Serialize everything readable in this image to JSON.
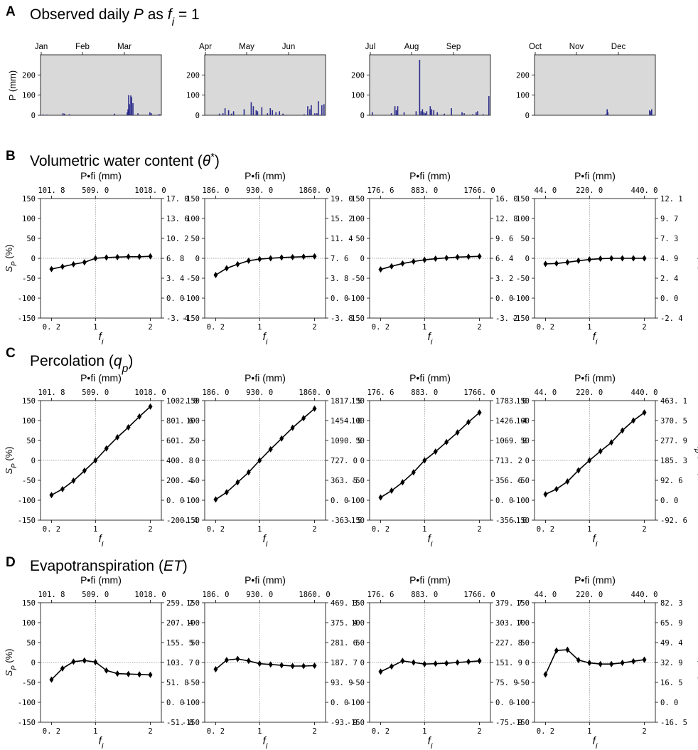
{
  "panels": {
    "A": {
      "label": "A",
      "title": "Observed daily P as f_i = 1"
    },
    "B": {
      "label": "B",
      "title": "Volumetric water content (θ*)"
    },
    "C": {
      "label": "C",
      "title": "Percolation (q_p)"
    },
    "D": {
      "label": "D",
      "title": "Evapotranspiration (ET)"
    }
  },
  "common": {
    "fi_label": "f_i",
    "pfi_label": "P•f_i (mm)",
    "sp_label": "S_P (%)",
    "p_label": "P (mm)"
  },
  "chart_data": [
    {
      "id": "A-precip",
      "type": "bar",
      "title": "Observed daily P as f_i = 1",
      "ylabel": "P (mm)",
      "ylim": [
        0,
        300
      ],
      "yticks": [
        0,
        100,
        200
      ],
      "colors": {
        "bar": "#2b2b8c",
        "background": "#d9d9d9"
      },
      "subplots": [
        {
          "months": [
            "Jan",
            "Feb",
            "Mar"
          ],
          "days": [
            3,
            8,
            31,
            33,
            40,
            104,
            122,
            123,
            124,
            125,
            127,
            128,
            130,
            137,
            154,
            156,
            166,
            168
          ],
          "values": [
            4,
            3,
            10,
            8,
            5,
            8,
            15,
            30,
            100,
            55,
            98,
            90,
            60,
            10,
            15,
            10,
            4,
            5
          ]
        },
        {
          "months": [
            "Apr",
            "May",
            "Jun"
          ],
          "days": [
            20,
            25,
            28,
            33,
            37,
            40,
            55,
            65,
            68,
            72,
            74,
            80,
            88,
            92,
            95,
            100,
            105,
            110,
            140,
            145,
            148,
            150,
            155,
            158,
            160,
            165,
            168
          ],
          "values": [
            8,
            10,
            35,
            25,
            8,
            20,
            30,
            65,
            45,
            25,
            20,
            40,
            10,
            35,
            25,
            15,
            20,
            8,
            5,
            45,
            30,
            50,
            10,
            10,
            70,
            50,
            55
          ]
        },
        {
          "months": [
            "Jul",
            "Aug",
            "Sep"
          ],
          "days": [
            3,
            30,
            35,
            37,
            39,
            48,
            65,
            70,
            72,
            74,
            76,
            78,
            80,
            85,
            87,
            90,
            95,
            105,
            115,
            130,
            133,
            145,
            150,
            152,
            160,
            168
          ],
          "values": [
            15,
            10,
            45,
            25,
            45,
            15,
            20,
            275,
            20,
            30,
            15,
            10,
            20,
            45,
            30,
            25,
            15,
            8,
            35,
            15,
            10,
            5,
            15,
            20,
            5,
            95
          ]
        },
        {
          "months": [
            "Oct",
            "Nov",
            "Dec"
          ],
          "days": [
            100,
            102,
            103,
            162,
            164,
            165
          ],
          "values": [
            5,
            30,
            15,
            25,
            20,
            30
          ]
        }
      ]
    },
    {
      "id": "B-theta",
      "type": "line",
      "title": "Volumetric water content (θ*)",
      "xlabel": "f_i",
      "ylabel_left": "S_P (%)",
      "ylabel_right": "θ* (%)",
      "xlim": [
        0.0,
        2.2
      ],
      "ylim": [
        -150,
        150
      ],
      "xticks": [
        0.2,
        1,
        2
      ],
      "xtick_labels": [
        "0. 2",
        "1",
        "2"
      ],
      "yticks": [
        -150,
        -100,
        -50,
        0,
        50,
        100,
        150
      ],
      "x": [
        0.2,
        0.4,
        0.6,
        0.8,
        1.0,
        1.2,
        1.4,
        1.6,
        1.8,
        2.0
      ],
      "subplots": [
        {
          "top_tick_labels": [
            "101. 8",
            "509. 0",
            "1018. 0"
          ],
          "right_tick_labels": [
            "17. 0",
            "13. 6",
            "10. 2",
            "6. 8",
            "3. 4",
            "0. 0",
            "-3. 4"
          ],
          "values": [
            -27,
            -21,
            -15,
            -10,
            0,
            2,
            3,
            4,
            4,
            5
          ]
        },
        {
          "top_tick_labels": [
            "186. 0",
            "930. 0",
            "1860. 0"
          ],
          "right_tick_labels": [
            "19. 0",
            "15. 2",
            "11. 4",
            "7. 6",
            "3. 8",
            "0. 0",
            "-3. 8"
          ],
          "values": [
            -42,
            -25,
            -15,
            -6,
            -2,
            0,
            2,
            3,
            4,
            5
          ]
        },
        {
          "top_tick_labels": [
            "176. 6",
            "883. 0",
            "1766. 0"
          ],
          "right_tick_labels": [
            "16. 0",
            "12. 8",
            "9. 6",
            "6. 4",
            "3. 2",
            "0. 0",
            "-3. 2"
          ],
          "values": [
            -28,
            -20,
            -13,
            -8,
            -4,
            -1,
            1,
            3,
            4,
            5
          ]
        },
        {
          "top_tick_labels": [
            "44. 0",
            "220. 0",
            "440. 0"
          ],
          "right_tick_labels": [
            "12. 1",
            "9. 7",
            "7. 3",
            "4. 9",
            "2. 4",
            "0. 0",
            "-2. 4"
          ],
          "values": [
            -14,
            -13,
            -10,
            -6,
            -3,
            -1,
            0,
            0,
            0,
            0
          ]
        }
      ]
    },
    {
      "id": "C-percolation",
      "type": "line",
      "title": "Percolation (q_p)",
      "xlabel": "f_i",
      "ylabel_left": "S_P (%)",
      "ylabel_right": "q_p (mm)",
      "xlim": [
        0.0,
        2.2
      ],
      "ylim": [
        -150,
        150
      ],
      "xticks": [
        0.2,
        1,
        2
      ],
      "xtick_labels": [
        "0. 2",
        "1",
        "2"
      ],
      "yticks": [
        -150,
        -100,
        -50,
        0,
        50,
        100,
        150
      ],
      "x": [
        0.2,
        0.4,
        0.6,
        0.8,
        1.0,
        1.2,
        1.4,
        1.6,
        1.8,
        2.0
      ],
      "subplots": [
        {
          "top_tick_labels": [
            "101. 8",
            "509. 0",
            "1018. 0"
          ],
          "right_tick_labels": [
            "1002. 0",
            "801. 6",
            "601. 2",
            "400. 8",
            "200. 4",
            "0. 0",
            "-200. 4"
          ],
          "values": [
            -87,
            -72,
            -51,
            -26,
            0,
            30,
            58,
            83,
            110,
            135
          ]
        },
        {
          "top_tick_labels": [
            "186. 0",
            "930. 0",
            "1860. 0"
          ],
          "right_tick_labels": [
            "1817. 5",
            "1454. 0",
            "1090. 5",
            "727. 0",
            "363. 5",
            "0. 0",
            "-363. 5"
          ],
          "values": [
            -98,
            -80,
            -55,
            -30,
            0,
            28,
            55,
            82,
            106,
            130
          ]
        },
        {
          "top_tick_labels": [
            "176. 6",
            "883. 0",
            "1766. 0"
          ],
          "right_tick_labels": [
            "1783. 0",
            "1426. 4",
            "1069. 8",
            "713. 2",
            "356. 6",
            "0. 0",
            "-356. 6"
          ],
          "values": [
            -93,
            -76,
            -55,
            -30,
            0,
            22,
            46,
            70,
            96,
            120
          ]
        },
        {
          "top_tick_labels": [
            "44. 0",
            "220. 0",
            "440. 0"
          ],
          "right_tick_labels": [
            "463. 1",
            "370. 5",
            "277. 9",
            "185. 3",
            "92. 6",
            "0. 0",
            "-92. 6"
          ],
          "values": [
            -85,
            -72,
            -53,
            -25,
            0,
            23,
            45,
            75,
            100,
            120
          ]
        }
      ]
    },
    {
      "id": "D-et",
      "type": "line",
      "title": "Evapotranspiration (ET)",
      "xlabel": "f_i",
      "ylabel_left": "S_P (%)",
      "ylabel_right": "ET (mm)",
      "xlim": [
        0.0,
        2.2
      ],
      "ylim": [
        -150,
        150
      ],
      "xticks": [
        0.2,
        1,
        2
      ],
      "xtick_labels": [
        "0. 2",
        "1",
        "2"
      ],
      "yticks": [
        -150,
        -100,
        -50,
        0,
        50,
        100,
        150
      ],
      "x": [
        0.2,
        0.4,
        0.6,
        0.8,
        1.0,
        1.2,
        1.4,
        1.6,
        1.8,
        2.0
      ],
      "subplots": [
        {
          "top_tick_labels": [
            "101. 8",
            "509. 0",
            "1018. 0"
          ],
          "right_tick_labels": [
            "259. 2",
            "207. 4",
            "155. 5",
            "103. 7",
            "51. 8",
            "0. 0",
            "-51. 8"
          ],
          "values": [
            -43,
            -15,
            2,
            5,
            1,
            -20,
            -28,
            -29,
            -30,
            -31
          ]
        },
        {
          "top_tick_labels": [
            "186. 0",
            "930. 0",
            "1860. 0"
          ],
          "right_tick_labels": [
            "469. 3",
            "375. 4",
            "281. 6",
            "187. 7",
            "93. 9",
            "0. 0",
            "-93. 9"
          ],
          "values": [
            -17,
            6,
            9,
            4,
            -3,
            -5,
            -7,
            -9,
            -9,
            -8
          ]
        },
        {
          "top_tick_labels": [
            "176. 6",
            "883. 0",
            "1766. 0"
          ],
          "right_tick_labels": [
            "379. 7",
            "303. 7",
            "227. 8",
            "151. 9",
            "75. 9",
            "0. 0",
            "-75. 9"
          ],
          "values": [
            -23,
            -10,
            4,
            0,
            -4,
            -3,
            -2,
            0,
            2,
            4
          ]
        },
        {
          "top_tick_labels": [
            "44. 0",
            "220. 0",
            "440. 0"
          ],
          "right_tick_labels": [
            "82. 3",
            "65. 9",
            "49. 4",
            "32. 9",
            "16. 5",
            "0. 0",
            "-16. 5"
          ],
          "values": [
            -30,
            30,
            32,
            6,
            -1,
            -4,
            -4,
            -1,
            3,
            7
          ]
        }
      ]
    }
  ]
}
